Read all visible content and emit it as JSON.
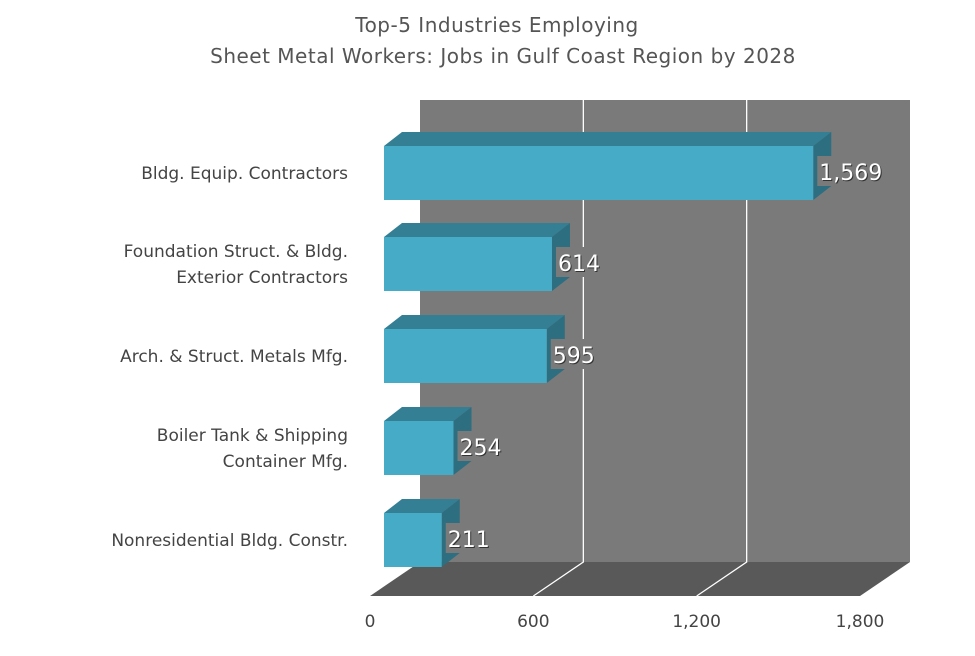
{
  "chart_data": {
    "type": "bar",
    "orientation": "horizontal",
    "style": "3d",
    "title": [
      "Top-5 Industries Employing",
      "Sheet Metal Workers: Jobs in Gulf Coast Region by 2028"
    ],
    "categories": [
      [
        "Bldg. Equip. Contractors"
      ],
      [
        "Foundation Struct. & Bldg.",
        "Exterior Contractors"
      ],
      [
        "Arch. & Struct. Metals Mfg."
      ],
      [
        "Boiler Tank & Shipping",
        "Container Mfg."
      ],
      [
        "Nonresidential Bldg. Constr."
      ]
    ],
    "values": [
      1569,
      614,
      595,
      254,
      211
    ],
    "value_labels": [
      "1,569",
      "614",
      "595",
      "254",
      "211"
    ],
    "xlim": [
      0,
      1800
    ],
    "x_ticks": [
      0,
      600,
      1200,
      1800
    ],
    "x_tick_labels": [
      "0",
      "600",
      "1,200",
      "1,800"
    ],
    "grid": true,
    "colors": {
      "bar_front": "#45abc6",
      "bar_top": "#347f94",
      "bar_side": "#2d6e80",
      "wall": "#7a7a7a",
      "floor": "#595959",
      "gridline": "#ffffff"
    }
  }
}
